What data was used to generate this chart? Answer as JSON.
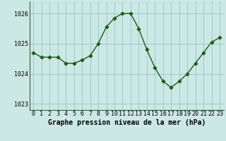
{
  "x": [
    0,
    1,
    2,
    3,
    4,
    5,
    6,
    7,
    8,
    9,
    10,
    11,
    12,
    13,
    14,
    15,
    16,
    17,
    18,
    19,
    20,
    21,
    22,
    23
  ],
  "y": [
    1024.7,
    1024.55,
    1024.55,
    1024.55,
    1024.35,
    1024.35,
    1024.45,
    1024.6,
    1025.0,
    1025.55,
    1025.85,
    1026.0,
    1026.0,
    1025.5,
    1024.8,
    1024.2,
    1023.75,
    1023.55,
    1023.75,
    1024.0,
    1024.35,
    1024.7,
    1025.05,
    1025.2
  ],
  "bg_color": "#cce8e4",
  "line_color": "#1a5c1a",
  "marker_color": "#1a5c1a",
  "grid_color": "#99cccc",
  "title": "Graphe pression niveau de la mer (hPa)",
  "ylim": [
    1022.8,
    1026.4
  ],
  "yticks": [
    1023,
    1024,
    1025,
    1026
  ],
  "xticks": [
    0,
    1,
    2,
    3,
    4,
    5,
    6,
    7,
    8,
    9,
    10,
    11,
    12,
    13,
    14,
    15,
    16,
    17,
    18,
    19,
    20,
    21,
    22,
    23
  ],
  "xlim": [
    -0.5,
    23.5
  ],
  "title_fontsize": 7.0,
  "tick_fontsize": 6.0,
  "line_width": 1.0,
  "marker_size": 2.8
}
